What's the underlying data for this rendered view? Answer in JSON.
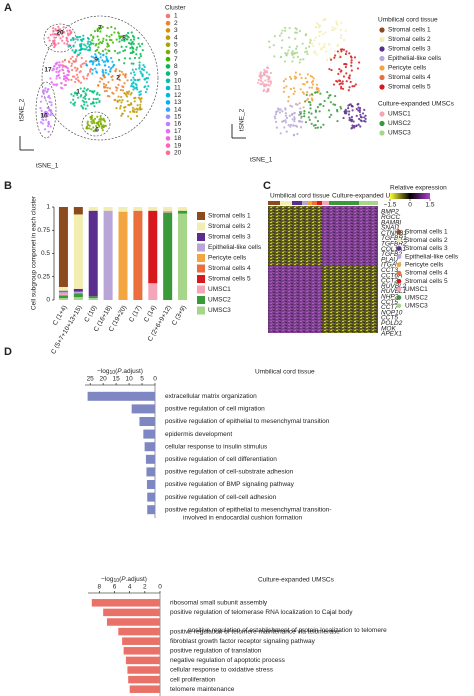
{
  "panel_labels": [
    "A",
    "B",
    "C",
    "D"
  ],
  "tsne": {
    "y_label": "tSNE_2",
    "x_label": "tSNE_1",
    "cluster_legend": {
      "title": "Cluster",
      "items": [
        "1",
        "2",
        "3",
        "4",
        "5",
        "6",
        "7",
        "8",
        "9",
        "10",
        "11",
        "12",
        "13",
        "14",
        "15",
        "16",
        "17",
        "18",
        "19",
        "20"
      ],
      "colors": [
        "#f8766d",
        "#ea8331",
        "#d89000",
        "#c09b00",
        "#a3a500",
        "#7cae00",
        "#39b600",
        "#00bb4e",
        "#00bf7d",
        "#00c1a3",
        "#00bfc4",
        "#00bae0",
        "#00b0f6",
        "#35a2ff",
        "#9590ff",
        "#c77cff",
        "#e76bf3",
        "#fa62db",
        "#ff62bc",
        "#ff6c91"
      ]
    },
    "cluster_annotations": [
      "20",
      "17",
      "7",
      "8",
      "2",
      "1",
      "9",
      "16",
      "6"
    ],
    "type_legend_groups": [
      "Umbilical cord tissue",
      "Culture-expanded UMSCs"
    ]
  },
  "chart_data": [
    {
      "type": "stacked_bar",
      "y_label": "Cell subgroup componet in each cluster",
      "categories": [
        "C (1+4)",
        "C (5+7+10+13+15)",
        "C (10)",
        "C (16+18)",
        "C (19+20)",
        "C (17)",
        "C (14)",
        "C (2+6+9+12)",
        "C (3+9)"
      ],
      "ylim": [
        0,
        1
      ],
      "yticks": [
        0,
        0.25,
        0.5,
        0.75,
        1
      ],
      "series": [
        {
          "name": "Stromal cells 1",
          "color": "#8c4a1f",
          "values": [
            0.86,
            0.08,
            0,
            0,
            0,
            0,
            0,
            0,
            0
          ]
        },
        {
          "name": "Stromal cells 2",
          "color": "#f2edb0",
          "values": [
            0.04,
            0.8,
            0.04,
            0.04,
            0.05,
            0.04,
            0.04,
            0.04,
            0.04
          ]
        },
        {
          "name": "Stromal cells 3",
          "color": "#5b2d8e",
          "values": [
            0.01,
            0.03,
            0.92,
            0,
            0,
            0,
            0,
            0,
            0
          ]
        },
        {
          "name": "Epithelial-like cells",
          "color": "#b8a6d8",
          "values": [
            0.02,
            0.02,
            0,
            0.96,
            0,
            0,
            0,
            0,
            0
          ]
        },
        {
          "name": "Pericyte cells",
          "color": "#f3a53f",
          "values": [
            0,
            0,
            0,
            0,
            0.95,
            0,
            0,
            0,
            0
          ]
        },
        {
          "name": "Stromal cells 4",
          "color": "#ea6f3c",
          "values": [
            0,
            0,
            0,
            0,
            0,
            0.96,
            0,
            0,
            0
          ]
        },
        {
          "name": "Stromal cells 5",
          "color": "#d7191c",
          "values": [
            0,
            0,
            0,
            0,
            0,
            0,
            0.78,
            0,
            0
          ]
        },
        {
          "name": "UMSC1",
          "color": "#f4a6b8",
          "values": [
            0.02,
            0,
            0,
            0,
            0,
            0,
            0.18,
            0.02,
            0
          ]
        },
        {
          "name": "UMSC2",
          "color": "#3a9a3a",
          "values": [
            0.03,
            0.04,
            0.02,
            0,
            0,
            0,
            0,
            0.94,
            0.03
          ]
        },
        {
          "name": "UMSC3",
          "color": "#a6d68a",
          "values": [
            0.02,
            0.03,
            0.02,
            0,
            0,
            0,
            0,
            0,
            0.93
          ]
        }
      ]
    },
    {
      "type": "hbar_reversed",
      "title": "Umbilical cord tissue",
      "x_label": [
        "−log",
        "10",
        "(",
        "P",
        ".adjust)"
      ],
      "xlim": [
        0,
        27
      ],
      "xticks": [
        0,
        5,
        10,
        15,
        20,
        25
      ],
      "color": "#7f87c2",
      "categories": [
        "extracellular matrix organization",
        "positive regulation of cell migration",
        "positive regulation of epithelial to mesenchymal transition",
        "epidermis development",
        "cellular response to insulin stimulus",
        "positive regulation of cell differentiation",
        "positive regulation of cell-substrate adhesion",
        "positive regulation of BMP signaling pathway",
        "positive regulation of cell-cell adhesion",
        "positive regulation of epithelial to mesenchymal transition-involved in endocardial cushion formation"
      ],
      "values": [
        26,
        9,
        6,
        4.5,
        4,
        3.5,
        3.3,
        3.1,
        3,
        3
      ]
    },
    {
      "type": "hbar_reversed",
      "title": "Culture-expanded UMSCs",
      "x_label": [
        "−log",
        "10",
        "(",
        "P",
        ".adjust)"
      ],
      "xlim": [
        0,
        9.5
      ],
      "xticks": [
        0,
        2,
        4,
        6,
        8
      ],
      "color": "#ea7168",
      "categories": [
        "ribosomal small subunit assembly",
        "positive regulation of telomerase RNA localization to Cajal body",
        "positive regulation of establishment of protein localization to telomere",
        "positive regulation of telomere maintenance via telomerase",
        "fibroblast growth factor receptor signaling pathway",
        "positive regulation of translation",
        "negative regulation of apoptotic process",
        "cellular response to oxidative stress",
        "cell proliferation",
        "telomere maintenance"
      ],
      "values": [
        9,
        7.5,
        7,
        5.5,
        5,
        4.8,
        4.5,
        4.3,
        4.2,
        4
      ]
    }
  ],
  "heatmap": {
    "column_groups": [
      {
        "name": "Umbilical cord tissue",
        "color": "#7b7fc4",
        "genes": [
          "BMP2",
          "RGCC",
          "BAMBI",
          "SNAI1",
          "CTNNB1",
          "TGFBR1",
          "TGFBR2",
          "COL1A1",
          "TGFB2",
          "PLAU",
          "ITGAV"
        ]
      },
      {
        "name": "Culture-expanded UMSCs",
        "color": "#d9964a",
        "genes": [
          "CCT3",
          "CCT6A",
          "CCT2",
          "RUVBL2",
          "RUVBL1",
          "NHP2",
          "CCT5",
          "CCT7",
          "NOP10",
          "CCT5",
          "POLD2",
          "MOK",
          "APEX1"
        ]
      }
    ],
    "colorbar": {
      "title": "Relative expression",
      "range": [
        -1.5,
        1.5
      ],
      "ticks": [
        {
          "value": -1.5,
          "label": "−1.5"
        },
        0,
        1.5
      ],
      "colors": [
        "#ffff33",
        "#000000",
        "#b040d0"
      ]
    }
  }
}
